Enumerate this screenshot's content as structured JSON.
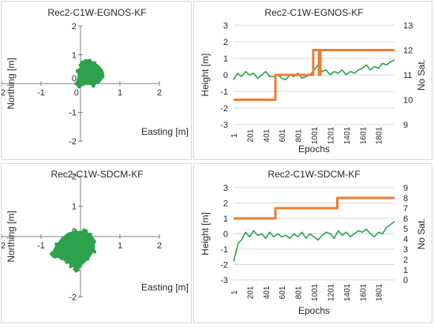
{
  "chart_data": [
    {
      "type": "scatter",
      "title": "Rec2-C1W-EGNOS-KF",
      "xlabel": "Easting [m]",
      "ylabel": "Northing [m]",
      "xlim": [
        -2,
        2
      ],
      "ylim": [
        -2,
        2
      ],
      "xticks": [
        "-2",
        "-1",
        "0",
        "1",
        "2"
      ],
      "yticks": [
        "-2",
        "-1",
        "0",
        "1",
        "2"
      ],
      "color": "#2ca24c",
      "cloud": {
        "outline": [
          [
            -0.08,
            0.05
          ],
          [
            -0.05,
            0.2
          ],
          [
            -0.03,
            0.45
          ],
          [
            0.02,
            0.62
          ],
          [
            0.08,
            0.75
          ],
          [
            0.2,
            0.78
          ],
          [
            0.32,
            0.72
          ],
          [
            0.45,
            0.6
          ],
          [
            0.55,
            0.45
          ],
          [
            0.56,
            0.3
          ],
          [
            0.52,
            0.15
          ],
          [
            0.45,
            0.05
          ],
          [
            0.3,
            -0.02
          ],
          [
            0.12,
            0.0
          ],
          [
            0.0,
            -0.08
          ],
          [
            -0.05,
            -0.05
          ]
        ],
        "points": [
          [
            0.0,
            0.1
          ],
          [
            0.05,
            0.4
          ],
          [
            0.15,
            0.65
          ],
          [
            0.25,
            0.7
          ],
          [
            0.4,
            0.55
          ],
          [
            0.5,
            0.35
          ],
          [
            0.45,
            0.15
          ],
          [
            0.3,
            0.05
          ],
          [
            0.1,
            0.05
          ],
          [
            0.2,
            0.3
          ],
          [
            0.35,
            0.4
          ],
          [
            0.08,
            0.7
          ],
          [
            0.55,
            0.25
          ]
        ],
        "seed": 11
      }
    },
    {
      "type": "line",
      "title": "Rec2-C1W-EGNOS-KF",
      "xlabel": "Epochs",
      "ylabel": "Height [m]",
      "y2label": "No Sat.",
      "xlim": [
        1,
        2000
      ],
      "ylim": [
        -3,
        3
      ],
      "y2lim": [
        9,
        13
      ],
      "xticks": [
        1,
        201,
        401,
        601,
        801,
        1001,
        1201,
        1401,
        1601,
        1801
      ],
      "yticks": [
        -3,
        -2,
        -1,
        0,
        1,
        2,
        3
      ],
      "y2ticks": [
        9,
        10,
        11,
        12,
        13
      ],
      "series": [
        {
          "axis": "left",
          "color": "#2ca24c",
          "x": [
            1,
            50,
            100,
            150,
            200,
            250,
            300,
            350,
            400,
            450,
            500,
            550,
            600,
            650,
            700,
            750,
            800,
            850,
            900,
            950,
            1000,
            1050,
            1100,
            1150,
            1200,
            1250,
            1300,
            1350,
            1400,
            1450,
            1500,
            1550,
            1600,
            1650,
            1700,
            1750,
            1800,
            1850,
            1900,
            1950,
            2000
          ],
          "y": [
            -0.3,
            0.1,
            -0.1,
            0.2,
            0.0,
            0.1,
            -0.2,
            0.0,
            0.2,
            -0.1,
            -0.1,
            0.0,
            -0.2,
            -0.3,
            0.0,
            -0.1,
            0.1,
            -0.2,
            -0.1,
            0.0,
            0.3,
            0.6,
            0.2,
            0.3,
            0.0,
            0.2,
            0.1,
            0.3,
            0.0,
            0.2,
            0.1,
            0.3,
            0.4,
            0.6,
            0.3,
            0.5,
            0.4,
            0.7,
            0.6,
            0.8,
            0.9
          ]
        },
        {
          "axis": "right",
          "color": "#ed7d31",
          "step": true,
          "x": [
            1,
            520,
            520,
            990,
            990,
            1060,
            1060,
            1080,
            1080,
            2000
          ],
          "y": [
            10,
            10,
            11,
            11,
            12,
            12,
            11,
            11,
            12,
            12
          ]
        }
      ]
    },
    {
      "type": "scatter",
      "title": "Rec2-C1W-SDCM-KF",
      "xlabel": "Easting [m]",
      "ylabel": "Northing [m]",
      "xlim": [
        -2,
        2
      ],
      "ylim": [
        -2,
        2
      ],
      "xticks": [
        "-2",
        "-1",
        "0",
        "1",
        "2"
      ],
      "yticks": [
        "-2",
        "-1",
        "0",
        "1",
        "2"
      ],
      "color": "#2ca24c",
      "cloud": {
        "outline": [
          [
            -0.7,
            -0.55
          ],
          [
            -0.6,
            -0.3
          ],
          [
            -0.45,
            -0.05
          ],
          [
            -0.3,
            0.1
          ],
          [
            -0.1,
            0.15
          ],
          [
            0.1,
            0.15
          ],
          [
            0.25,
            0.05
          ],
          [
            0.35,
            -0.15
          ],
          [
            0.32,
            -0.45
          ],
          [
            0.2,
            -0.7
          ],
          [
            0.0,
            -0.95
          ],
          [
            -0.1,
            -1.1
          ],
          [
            -0.2,
            -0.95
          ],
          [
            -0.35,
            -0.8
          ],
          [
            -0.5,
            -0.7
          ],
          [
            -0.65,
            -0.65
          ]
        ],
        "points": [
          [
            -0.6,
            -0.5
          ],
          [
            -0.3,
            -0.1
          ],
          [
            0.0,
            0.0
          ],
          [
            0.2,
            -0.2
          ],
          [
            0.1,
            -0.6
          ],
          [
            -0.1,
            -0.95
          ],
          [
            -0.3,
            -0.7
          ],
          [
            -0.45,
            -0.4
          ],
          [
            0.3,
            -0.4
          ],
          [
            -0.15,
            -0.3
          ],
          [
            -0.05,
            0.1
          ]
        ],
        "seed": 29
      }
    },
    {
      "type": "line",
      "title": "Rec2-C1W-SDCM-KF",
      "xlabel": "Epochs",
      "ylabel": "Height [m]",
      "y2label": "No Sat.",
      "xlim": [
        1,
        2000
      ],
      "ylim": [
        -3,
        3
      ],
      "y2lim": [
        0,
        9
      ],
      "xticks": [
        1,
        201,
        401,
        601,
        801,
        1001,
        1201,
        1401,
        1601,
        1801
      ],
      "yticks": [
        -3,
        -2,
        -1,
        0,
        1,
        2,
        3
      ],
      "y2ticks": [
        0,
        1,
        2,
        3,
        4,
        5,
        6,
        7,
        8,
        9
      ],
      "series": [
        {
          "axis": "left",
          "color": "#2ca24c",
          "x": [
            1,
            30,
            60,
            100,
            150,
            200,
            250,
            300,
            350,
            400,
            450,
            500,
            550,
            600,
            650,
            700,
            750,
            800,
            850,
            900,
            950,
            1000,
            1050,
            1100,
            1150,
            1200,
            1250,
            1300,
            1350,
            1400,
            1450,
            1500,
            1550,
            1600,
            1650,
            1700,
            1750,
            1800,
            1850,
            1900,
            1950,
            2000
          ],
          "y": [
            -1.8,
            -1.2,
            -0.6,
            -0.4,
            0.1,
            -0.2,
            0.2,
            -0.1,
            0.0,
            -0.3,
            0.1,
            -0.2,
            0.0,
            -0.2,
            -0.1,
            -0.3,
            0.0,
            -0.2,
            0.1,
            -0.3,
            0.0,
            -0.2,
            -0.4,
            -0.1,
            0.1,
            0.0,
            -0.3,
            0.2,
            -0.1,
            0.1,
            -0.2,
            0.0,
            0.2,
            0.1,
            0.3,
            0.0,
            -0.2,
            0.1,
            0.0,
            0.4,
            0.6,
            0.8
          ]
        },
        {
          "axis": "right",
          "color": "#ed7d31",
          "step": true,
          "x": [
            1,
            520,
            520,
            1290,
            1290,
            2000
          ],
          "y": [
            6,
            6,
            7,
            7,
            8,
            8
          ]
        }
      ]
    }
  ]
}
